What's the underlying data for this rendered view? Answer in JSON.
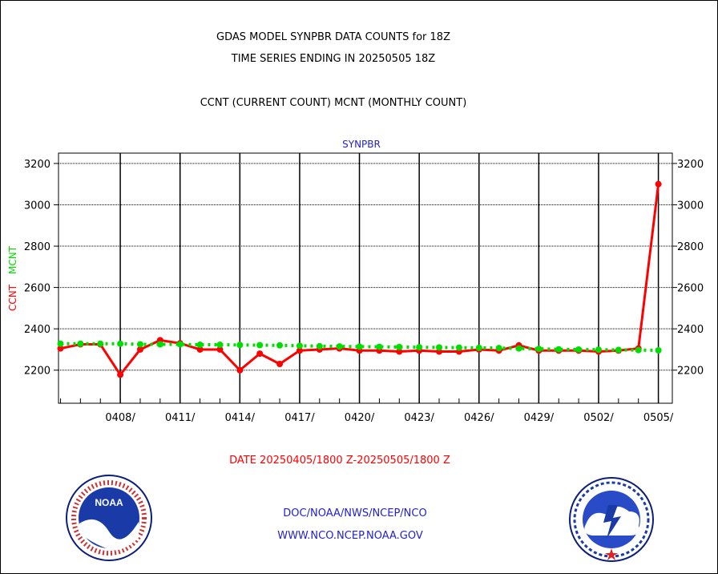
{
  "header": {
    "title_line1": "GDAS MODEL SYNPBR DATA COUNTS for 18Z",
    "title_line2": "TIME SERIES ENDING IN 20250505 18Z",
    "subtitle": "CCNT (CURRENT COUNT) MCNT (MONTHLY COUNT)"
  },
  "footer": {
    "date_range": "DATE 20250405/1800 Z-20250505/1800 Z",
    "org_path": "DOC/NOAA/NWS/NCEP/NCO",
    "website": "WWW.NCO.NCEP.NOAA.GOV"
  },
  "logos": {
    "left": "noaa-logo",
    "right": "national-weather-service-logo"
  },
  "chart_data": {
    "type": "line",
    "title": "SYNPBR",
    "ylabel_ccnt": "CCNT",
    "ylabel_mcnt": "MCNT",
    "xlabel": "",
    "ylim": [
      2040,
      3250
    ],
    "yticks": [
      2200,
      2400,
      2600,
      2800,
      3000,
      3200
    ],
    "x_days": [
      5,
      6,
      7,
      8,
      9,
      10,
      11,
      12,
      13,
      14,
      15,
      16,
      17,
      18,
      19,
      20,
      21,
      22,
      23,
      24,
      25,
      26,
      27,
      28,
      29,
      30,
      31,
      32,
      33,
      34,
      35
    ],
    "x_tick_labels": [
      "0408/",
      "0411/",
      "0414/",
      "0417/",
      "0420/",
      "0423/",
      "0426/",
      "0429/",
      "0502/",
      "0505/"
    ],
    "x_tick_days": [
      8,
      11,
      14,
      17,
      20,
      23,
      26,
      29,
      32,
      35
    ],
    "grid": true,
    "colors": {
      "ccnt": "#ff0000",
      "mcnt": "#00dd00",
      "text": "#000000",
      "station": "#2222cc"
    },
    "series": [
      {
        "name": "CCNT",
        "values": [
          2305,
          2325,
          2325,
          2178,
          2300,
          2345,
          2330,
          2300,
          2300,
          2200,
          2280,
          2230,
          2295,
          2300,
          2305,
          2295,
          2295,
          2290,
          2295,
          2290,
          2290,
          2300,
          2295,
          2320,
          2295,
          2295,
          2295,
          2290,
          2295,
          2305,
          3100
        ]
      },
      {
        "name": "MCNT",
        "values": [
          2328,
          2328,
          2328,
          2328,
          2325,
          2325,
          2325,
          2323,
          2323,
          2322,
          2321,
          2320,
          2318,
          2316,
          2315,
          2314,
          2313,
          2312,
          2311,
          2310,
          2309,
          2308,
          2307,
          2305,
          2303,
          2301,
          2300,
          2299,
          2298,
          2297,
          2296
        ]
      }
    ]
  }
}
